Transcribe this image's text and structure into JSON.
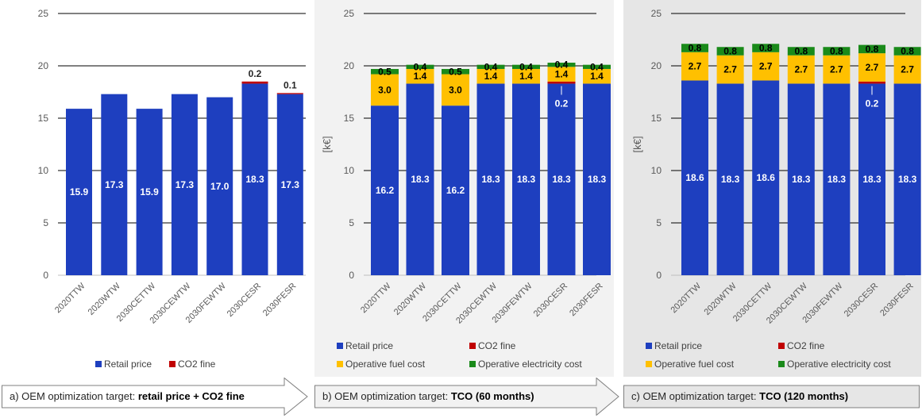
{
  "colors": {
    "retail": "#1e3fbf",
    "co2": "#c00000",
    "fuel": "#ffc000",
    "electricity": "#1a8a1a"
  },
  "chart_data": [
    {
      "type": "bar",
      "stacked": true,
      "ylabel": "",
      "ylim": [
        0,
        25
      ],
      "yticks": [
        0,
        5,
        10,
        15,
        20,
        25
      ],
      "categories": [
        "2020TTW",
        "2020WTW",
        "2030CETTW",
        "2030CEWTW",
        "2030FEWTW",
        "2030CESR",
        "2030FESR"
      ],
      "series": [
        {
          "name": "Retail price",
          "key": "retail",
          "values": [
            15.9,
            17.3,
            15.9,
            17.3,
            17.0,
            18.3,
            17.3
          ]
        },
        {
          "name": "CO2 fine",
          "key": "co2",
          "values": [
            0,
            0,
            0,
            0,
            0,
            0.2,
            0.1
          ]
        }
      ],
      "legend": [
        "Retail price",
        "CO2 fine"
      ],
      "legend_position": "bottom",
      "target_prefix": "a) OEM optimization target: ",
      "target_bold": "retail price + CO2 fine"
    },
    {
      "type": "bar",
      "stacked": true,
      "ylabel": "[k€]",
      "ylim": [
        0,
        25
      ],
      "yticks": [
        0,
        5,
        10,
        15,
        20,
        25
      ],
      "categories": [
        "2020TTW",
        "2020WTW",
        "2030CETTW",
        "2030CEWTW",
        "2030FEWTW",
        "2030CESR",
        "2030FESR"
      ],
      "series": [
        {
          "name": "Retail price",
          "key": "retail",
          "values": [
            16.2,
            18.3,
            16.2,
            18.3,
            18.3,
            18.3,
            18.3
          ]
        },
        {
          "name": "CO2 fine",
          "key": "co2",
          "values": [
            0,
            0,
            0,
            0,
            0,
            0.2,
            0
          ]
        },
        {
          "name": "Operative fuel cost",
          "key": "fuel",
          "values": [
            3.0,
            1.4,
            3.0,
            1.4,
            1.4,
            1.4,
            1.4
          ]
        },
        {
          "name": "Operative electricity cost",
          "key": "electricity",
          "values": [
            0.5,
            0.4,
            0.5,
            0.4,
            0.4,
            0.4,
            0.4
          ]
        }
      ],
      "legend": [
        "Retail price",
        "CO2 fine",
        "Operative fuel cost",
        "Operative electricity cost"
      ],
      "legend_position": "bottom",
      "target_prefix": "b) OEM optimization target: ",
      "target_bold": "TCO (60 months)"
    },
    {
      "type": "bar",
      "stacked": true,
      "ylabel": "[k€]",
      "ylim": [
        0,
        25
      ],
      "yticks": [
        0,
        5,
        10,
        15,
        20,
        25
      ],
      "categories": [
        "2020TTW",
        "2020WTW",
        "2030CETTW",
        "2030CEWTW",
        "2030FEWTW",
        "2030CESR",
        "2030FESR"
      ],
      "series": [
        {
          "name": "Retail price",
          "key": "retail",
          "values": [
            18.6,
            18.3,
            18.6,
            18.3,
            18.3,
            18.3,
            18.3
          ]
        },
        {
          "name": "CO2 fine",
          "key": "co2",
          "values": [
            0,
            0,
            0,
            0,
            0,
            0.2,
            0
          ]
        },
        {
          "name": "Operative fuel cost",
          "key": "fuel",
          "values": [
            2.7,
            2.7,
            2.7,
            2.7,
            2.7,
            2.7,
            2.7
          ]
        },
        {
          "name": "Operative electricity cost",
          "key": "electricity",
          "values": [
            0.8,
            0.8,
            0.8,
            0.8,
            0.8,
            0.8,
            0.8
          ]
        }
      ],
      "legend": [
        "Retail price",
        "CO2 fine",
        "Operative fuel cost",
        "Operative electricity cost"
      ],
      "legend_position": "bottom",
      "target_prefix": "c) OEM optimization target: ",
      "target_bold": "TCO (120 months)"
    }
  ]
}
